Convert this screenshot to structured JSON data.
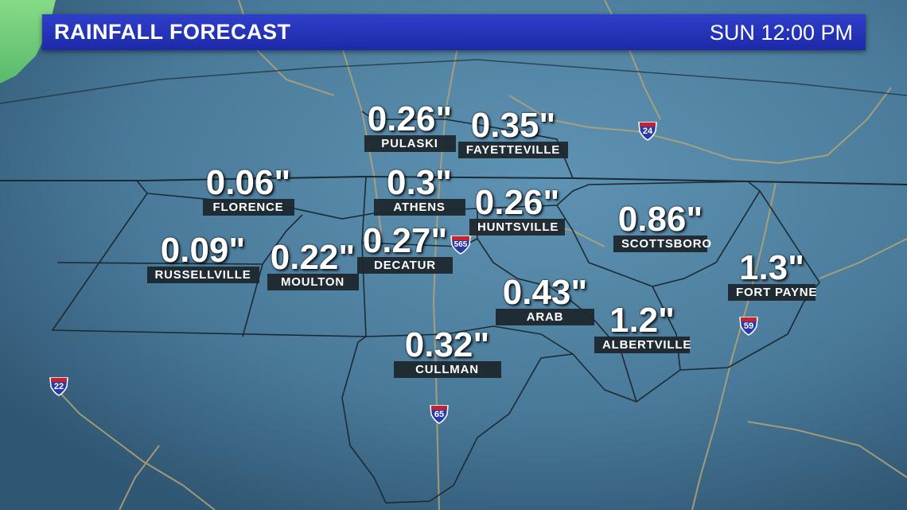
{
  "header": {
    "title": "RAINFALL FORECAST",
    "time": "SUN 12:00 PM"
  },
  "cities": [
    {
      "name": "PULASKI",
      "value": "0.26\""
    },
    {
      "name": "FAYETTEVILLE",
      "value": "0.35\""
    },
    {
      "name": "FLORENCE",
      "value": "0.06\""
    },
    {
      "name": "ATHENS",
      "value": "0.3\""
    },
    {
      "name": "HUNTSVILLE",
      "value": "0.26\""
    },
    {
      "name": "SCOTTSBORO",
      "value": "0.86\""
    },
    {
      "name": "RUSSELLVILLE",
      "value": "0.09\""
    },
    {
      "name": "MOULTON",
      "value": "0.22\""
    },
    {
      "name": "DECATUR",
      "value": "0.27\""
    },
    {
      "name": "FORT PAYNE",
      "value": "1.3\""
    },
    {
      "name": "ARAB",
      "value": "0.43\""
    },
    {
      "name": "ALBERTVILLE",
      "value": "1.2\""
    },
    {
      "name": "CULLMAN",
      "value": "0.32\""
    }
  ],
  "interstates": [
    {
      "number": "24"
    },
    {
      "number": "565"
    },
    {
      "number": "59"
    },
    {
      "number": "22"
    },
    {
      "number": "65"
    }
  ],
  "colors": {
    "header": "#2233bb",
    "map_fill": "#3f6f8f",
    "rain_fill": "#7ee07a",
    "roads": "#b0a070",
    "borders": "#1b2a33"
  }
}
